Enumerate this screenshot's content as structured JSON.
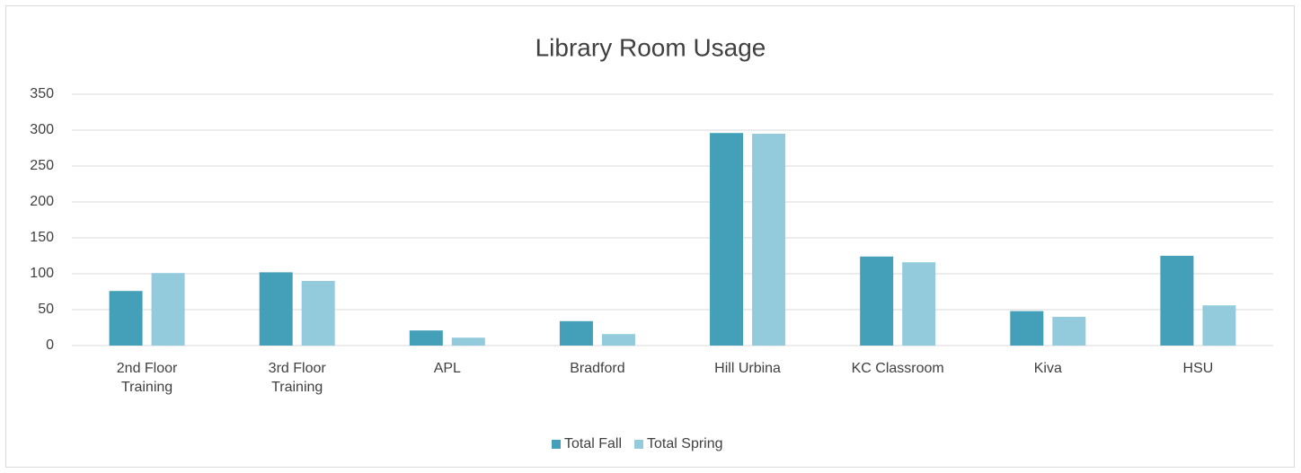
{
  "chart_data": {
    "type": "bar",
    "title": "Library Room Usage",
    "categories": [
      "2nd Floor Training",
      "3rd Floor Training",
      "APL",
      "Bradford",
      "Hill Urbina",
      "KC Classroom",
      "Kiva",
      "HSU"
    ],
    "series": [
      {
        "name": "Total Fall",
        "color": "#43a0b8",
        "values": [
          76,
          102,
          21,
          34,
          296,
          124,
          48,
          125
        ]
      },
      {
        "name": "Total Spring",
        "color": "#93cbdc",
        "values": [
          101,
          90,
          11,
          16,
          295,
          116,
          40,
          56
        ]
      }
    ],
    "ylim": [
      0,
      350
    ],
    "yticks": [
      0,
      50,
      100,
      150,
      200,
      250,
      300,
      350
    ],
    "grid": true,
    "legend": "bottom"
  }
}
